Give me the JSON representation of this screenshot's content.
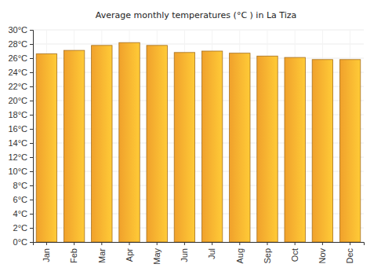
{
  "chart_data": {
    "type": "bar",
    "title": "Average monthly temperatures (°C ) in La Tiza",
    "categories": [
      "Jan",
      "Feb",
      "Mar",
      "Apr",
      "May",
      "Jun",
      "Jul",
      "Aug",
      "Sep",
      "Oct",
      "Nov",
      "Dec"
    ],
    "values": [
      26.6,
      27.1,
      27.8,
      28.2,
      27.8,
      26.8,
      27.0,
      26.7,
      26.3,
      26.1,
      25.8,
      25.8
    ],
    "color": "#fdaa2e",
    "ylim": [
      0,
      30
    ],
    "yticks": [
      {
        "value": 0,
        "label": "0°C"
      },
      {
        "value": 2,
        "label": "2°C"
      },
      {
        "value": 4,
        "label": "4°C"
      },
      {
        "value": 6,
        "label": "6°C"
      },
      {
        "value": 8,
        "label": "8°C"
      },
      {
        "value": 10,
        "label": "10°C"
      },
      {
        "value": 12,
        "label": "12°C"
      },
      {
        "value": 14,
        "label": "14°C"
      },
      {
        "value": 16,
        "label": "16°C"
      },
      {
        "value": 18,
        "label": "18°C"
      },
      {
        "value": 20,
        "label": "20°C"
      },
      {
        "value": 22,
        "label": "22°C"
      },
      {
        "value": 24,
        "label": "24°C"
      },
      {
        "value": 26,
        "label": "26°C"
      },
      {
        "value": 28,
        "label": "28°C"
      },
      {
        "value": 30,
        "label": "30°C"
      }
    ],
    "grid": true
  }
}
